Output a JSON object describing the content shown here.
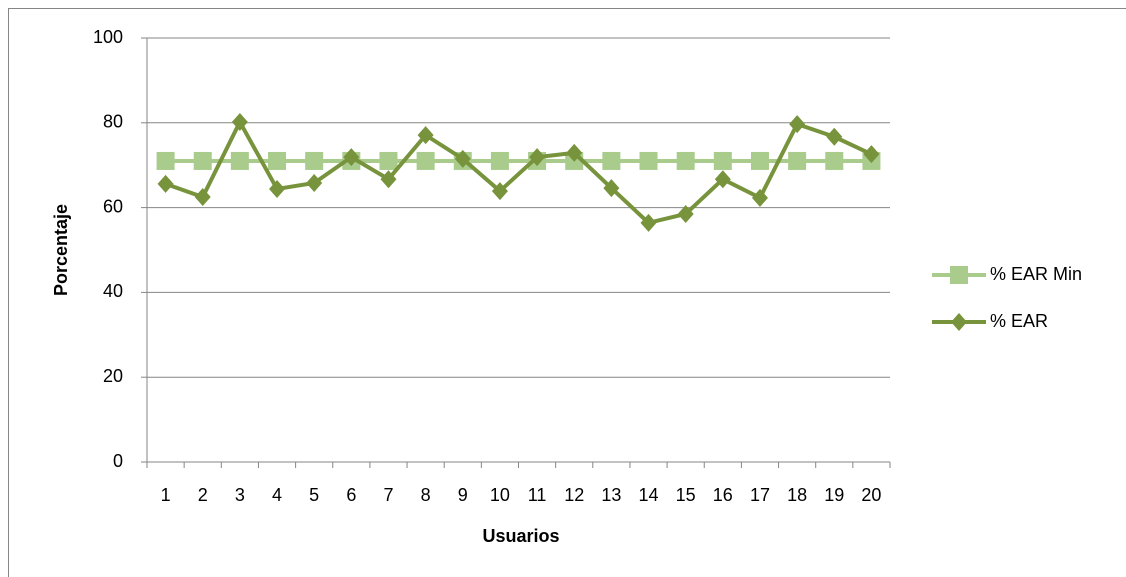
{
  "chart_data": {
    "type": "line",
    "x_label": "Usuarios",
    "y_label": "Porcentaje",
    "categories": [
      "1",
      "2",
      "3",
      "4",
      "5",
      "6",
      "7",
      "8",
      "9",
      "10",
      "11",
      "12",
      "13",
      "14",
      "15",
      "16",
      "17",
      "18",
      "19",
      "20"
    ],
    "series": [
      {
        "name": "% EAR Min",
        "color": "#a9cc8c",
        "marker": "square",
        "values": [
          71,
          71,
          71,
          71,
          71,
          71,
          71,
          71,
          71,
          71,
          71,
          71,
          71,
          71,
          71,
          71,
          71,
          71,
          71,
          71
        ]
      },
      {
        "name": "% EAR",
        "color": "#77933c",
        "marker": "diamond",
        "values": [
          65.6,
          62.5,
          80.2,
          64.4,
          65.8,
          71.9,
          66.7,
          77.1,
          71.5,
          63.9,
          71.9,
          72.9,
          64.6,
          56.4,
          58.5,
          66.7,
          62.3,
          79.7,
          76.7,
          72.6
        ]
      }
    ],
    "ylim": [
      0,
      100
    ],
    "yticks": [
      0,
      20,
      40,
      60,
      80,
      100
    ],
    "grid": true,
    "legend": "right"
  }
}
